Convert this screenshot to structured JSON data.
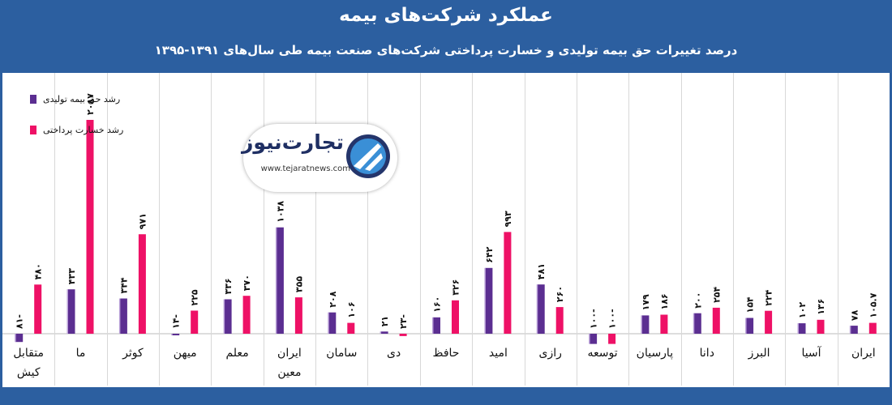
{
  "header": {
    "title": "عملکرد شرکت‌های بیمه",
    "subtitle": "درصد تغییرات حق بیمه تولیدی و خسارت پرداختی شرکت‌های صنعت بیمه طی سال‌های ۱۳۹۱-۱۳۹۵"
  },
  "logo": {
    "text": "تجارت‌نیوز",
    "url": "www.tejaratnews.com"
  },
  "colors": {
    "background": "#2c5fa0",
    "premium": "#5b2e91",
    "claims": "#ee1166"
  },
  "chart_data": {
    "type": "bar",
    "title": "",
    "xlabel": "",
    "ylabel": "",
    "ylim": [
      -100,
      2300
    ],
    "grid": false,
    "legend_position": "top-left",
    "categories": [
      "ایران",
      "آسیا",
      "البرز",
      "دانا",
      "پارسیان",
      "توسعه",
      "رازی",
      "امید",
      "حافظ",
      "دی",
      "سامان",
      "ایران معین",
      "معلم",
      "میهن",
      "کوثر",
      "ما",
      "متقابل کیش"
    ],
    "series": [
      {
        "name": "رشد حق بیمه تولیدی",
        "values": [
          78,
          102,
          154,
          200,
          179,
          -100,
          481,
          642,
          160,
          21,
          208,
          1038,
          336,
          -14,
          344,
          433,
          -81
        ],
        "labels": [
          "۷۸",
          "۱۰۲",
          "۱۵۴",
          "۲۰۰",
          "۱۷۹",
          "۱۰۰-",
          "۴۸۱",
          "۶۴۲",
          "۱۶۰",
          "۲۱",
          "۲۰۸",
          "۱۰۳۸",
          "۳۳۶",
          "۱۴-",
          "۳۴۴",
          "۴۳۳",
          "۸۱-"
        ]
      },
      {
        "name": "رشد خسارت پرداختی",
        "values": [
          105.7,
          136,
          224,
          254,
          186,
          -100,
          260,
          993,
          326,
          -23,
          106,
          355,
          370,
          225,
          971,
          2087,
          480
        ],
        "labels": [
          "۱۰۵.۷",
          "۱۳۶",
          "۲۲۴",
          "۲۵۴",
          "۱۸۶",
          "۱۰۰-",
          "۲۶۰",
          "۹۹۳",
          "۳۲۶",
          "۲۳-",
          "۱۰۶",
          "۳۵۵",
          "۳۷۰",
          "۲۲۵",
          "۹۷۱",
          "۲۰۸۷",
          "۴۸۰"
        ]
      }
    ]
  }
}
